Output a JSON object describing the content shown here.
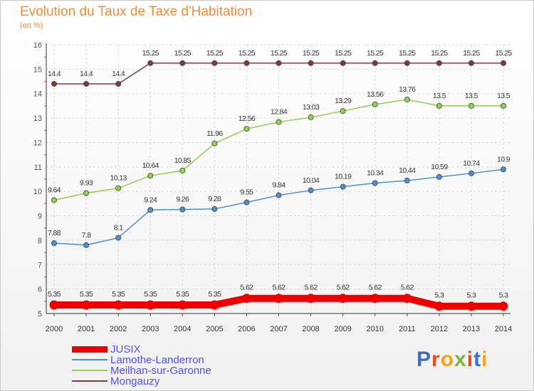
{
  "chart": {
    "title": "Evolution du Taux de Taxe d'Habitation",
    "subtitle": "(en %)"
  },
  "brand": {
    "text": "Proxiti",
    "letter_colors": [
      "#3b6fd1",
      "#e84b1f",
      "#f2a51c",
      "#7ab342",
      "#e84b1f",
      "#3b6fd1",
      "#f2a51c"
    ]
  },
  "chart_data": {
    "type": "line",
    "title": "Evolution du Taux de Taxe d'Habitation",
    "subtitle": "(en %)",
    "xlabel": "",
    "ylabel": "",
    "x": [
      "2000",
      "2001",
      "2002",
      "2003",
      "2004",
      "2005",
      "2006",
      "2007",
      "2008",
      "2009",
      "2010",
      "2011",
      "2012",
      "2013",
      "2014"
    ],
    "ylim": [
      5,
      16
    ],
    "yticks": [
      "5",
      "6",
      "7",
      "8",
      "9",
      "10",
      "11",
      "12",
      "13",
      "14",
      "15",
      "16"
    ],
    "grid": true,
    "legend_position": "bottom-left",
    "series": [
      {
        "name": "JUSIX",
        "color": "#ee0000",
        "emphasis": true,
        "values": [
          5.35,
          5.35,
          5.35,
          5.35,
          5.35,
          5.35,
          5.62,
          5.62,
          5.62,
          5.62,
          5.62,
          5.62,
          5.3,
          5.3,
          5.3
        ],
        "labels": [
          "5.35",
          "5.35",
          "5.35",
          "5.35",
          "5.35",
          "5.35",
          "5.62",
          "5.62",
          "5.62",
          "5.62",
          "5.62",
          "5.62",
          "5.3",
          "5.3",
          "5.3"
        ]
      },
      {
        "name": "Lamothe-Landerron",
        "color": "#4f8fcf",
        "emphasis": false,
        "values": [
          7.88,
          7.8,
          8.1,
          9.24,
          9.26,
          9.28,
          9.55,
          9.84,
          10.04,
          10.19,
          10.34,
          10.44,
          10.59,
          10.74,
          10.9
        ],
        "labels": [
          "7.88",
          "7.8",
          "8.1",
          "9.24",
          "9.26",
          "9.28",
          "9.55",
          "9.84",
          "10.04",
          "10.19",
          "10.34",
          "10.44",
          "10.59",
          "10.74",
          "10.9"
        ]
      },
      {
        "name": "Meilhan-sur-Garonne",
        "color": "#8fd14f",
        "emphasis": false,
        "values": [
          9.64,
          9.93,
          10.13,
          10.64,
          10.85,
          11.96,
          12.56,
          12.84,
          13.03,
          13.29,
          13.56,
          13.76,
          13.5,
          13.5,
          13.5
        ],
        "labels": [
          "9.64",
          "9.93",
          "10.13",
          "10.64",
          "10.85",
          "11.96",
          "12.56",
          "12.84",
          "13.03",
          "13.29",
          "13.56",
          "13.76",
          "13.5",
          "13.5",
          "13.5"
        ]
      },
      {
        "name": "Mongauzy",
        "color": "#7a3b3b",
        "emphasis": false,
        "values": [
          14.4,
          14.4,
          14.4,
          15.25,
          15.25,
          15.25,
          15.25,
          15.25,
          15.25,
          15.25,
          15.25,
          15.25,
          15.25,
          15.25,
          15.25
        ],
        "labels": [
          "14.4",
          "14.4",
          "14.4",
          "15.25",
          "15.25",
          "15.25",
          "15.25",
          "15.25",
          "15.25",
          "15.25",
          "15.25",
          "15.25",
          "15.25",
          "15.25",
          "15.25"
        ]
      }
    ]
  }
}
